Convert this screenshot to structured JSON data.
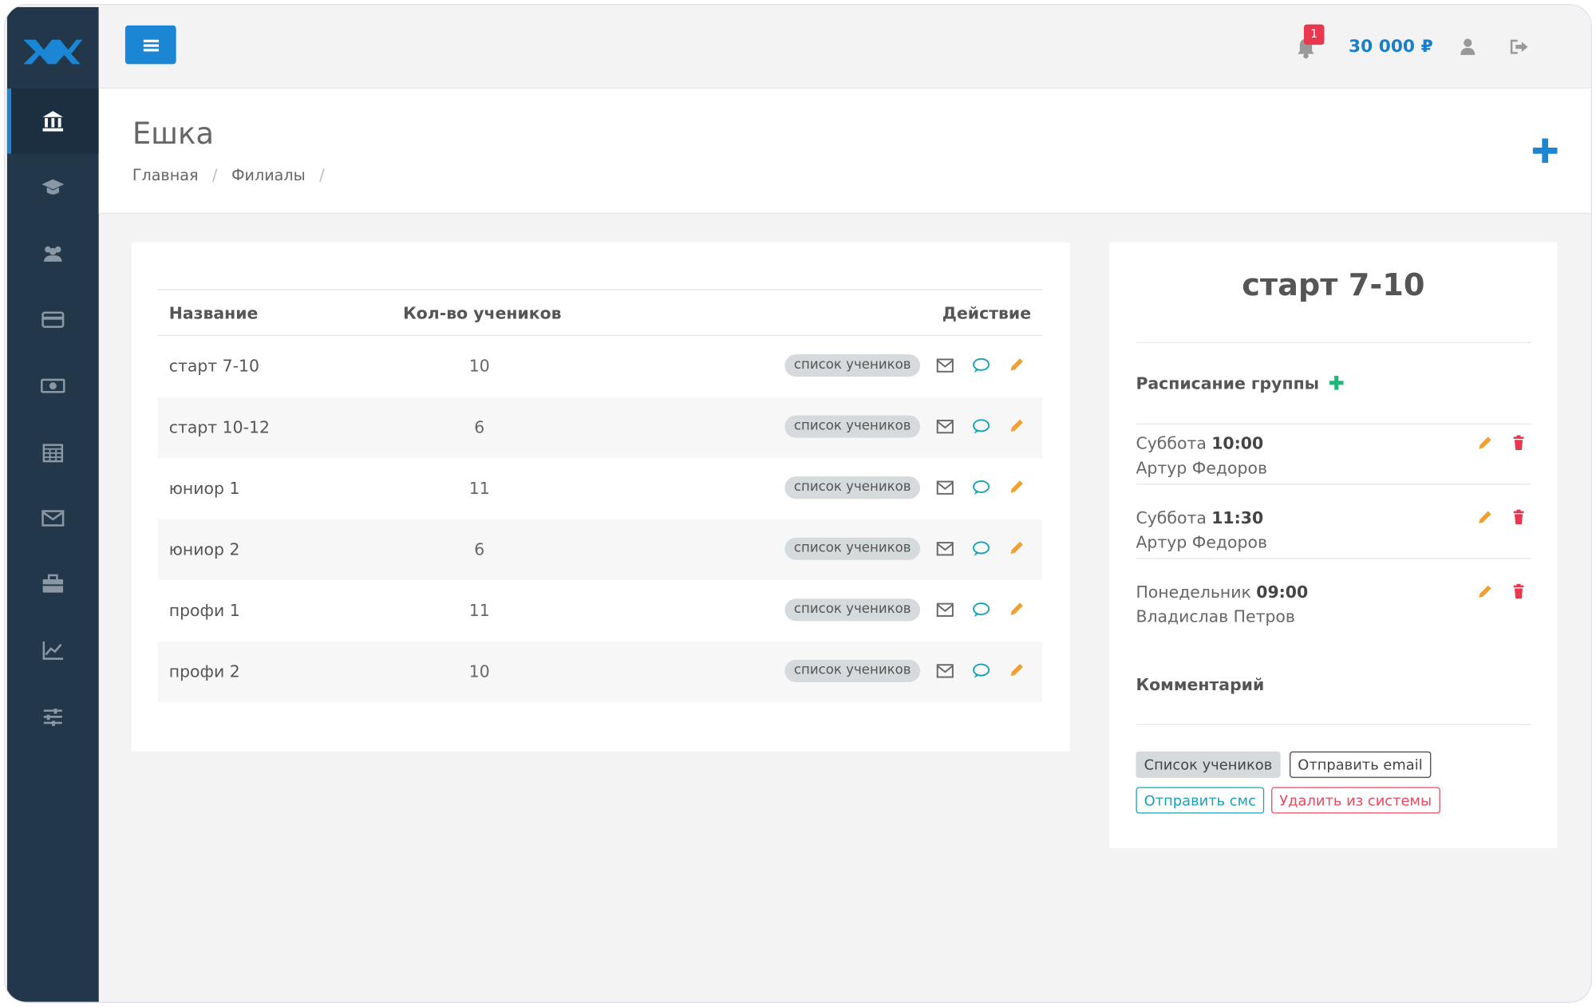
{
  "topbar": {
    "notifications": "1",
    "balance": "30 000 ₽"
  },
  "header": {
    "title": "Ешка",
    "breadcrumbs": [
      "Главная",
      "Филиалы"
    ],
    "separator": "/"
  },
  "table": {
    "columns": [
      "Название",
      "Кол-во учеников",
      "Действие"
    ],
    "rows": [
      [
        "старт 7-10",
        "10"
      ],
      [
        "старт 10-12",
        "6"
      ],
      [
        "юниор 1",
        "11"
      ],
      [
        "юниор 2",
        "6"
      ],
      [
        "профи 1",
        "11"
      ],
      [
        "профи 2",
        "10"
      ]
    ],
    "row_button": "список учеников"
  },
  "panel": {
    "title": "старт 7-10",
    "schedule_title": "Расписание группы",
    "schedule": [
      {
        "day": "Суббота",
        "time": "10:00",
        "teacher": "Артур Федоров"
      },
      {
        "day": "Суббота",
        "time": "11:30",
        "teacher": "Артур Федоров"
      },
      {
        "day": "Понедельник",
        "time": "09:00",
        "teacher": "Владислав Петров"
      }
    ],
    "comment_title": "Комментарий",
    "buttons": [
      "Список учеников",
      "Отправить email",
      "Отправить смс",
      "Удалить из системы"
    ]
  }
}
